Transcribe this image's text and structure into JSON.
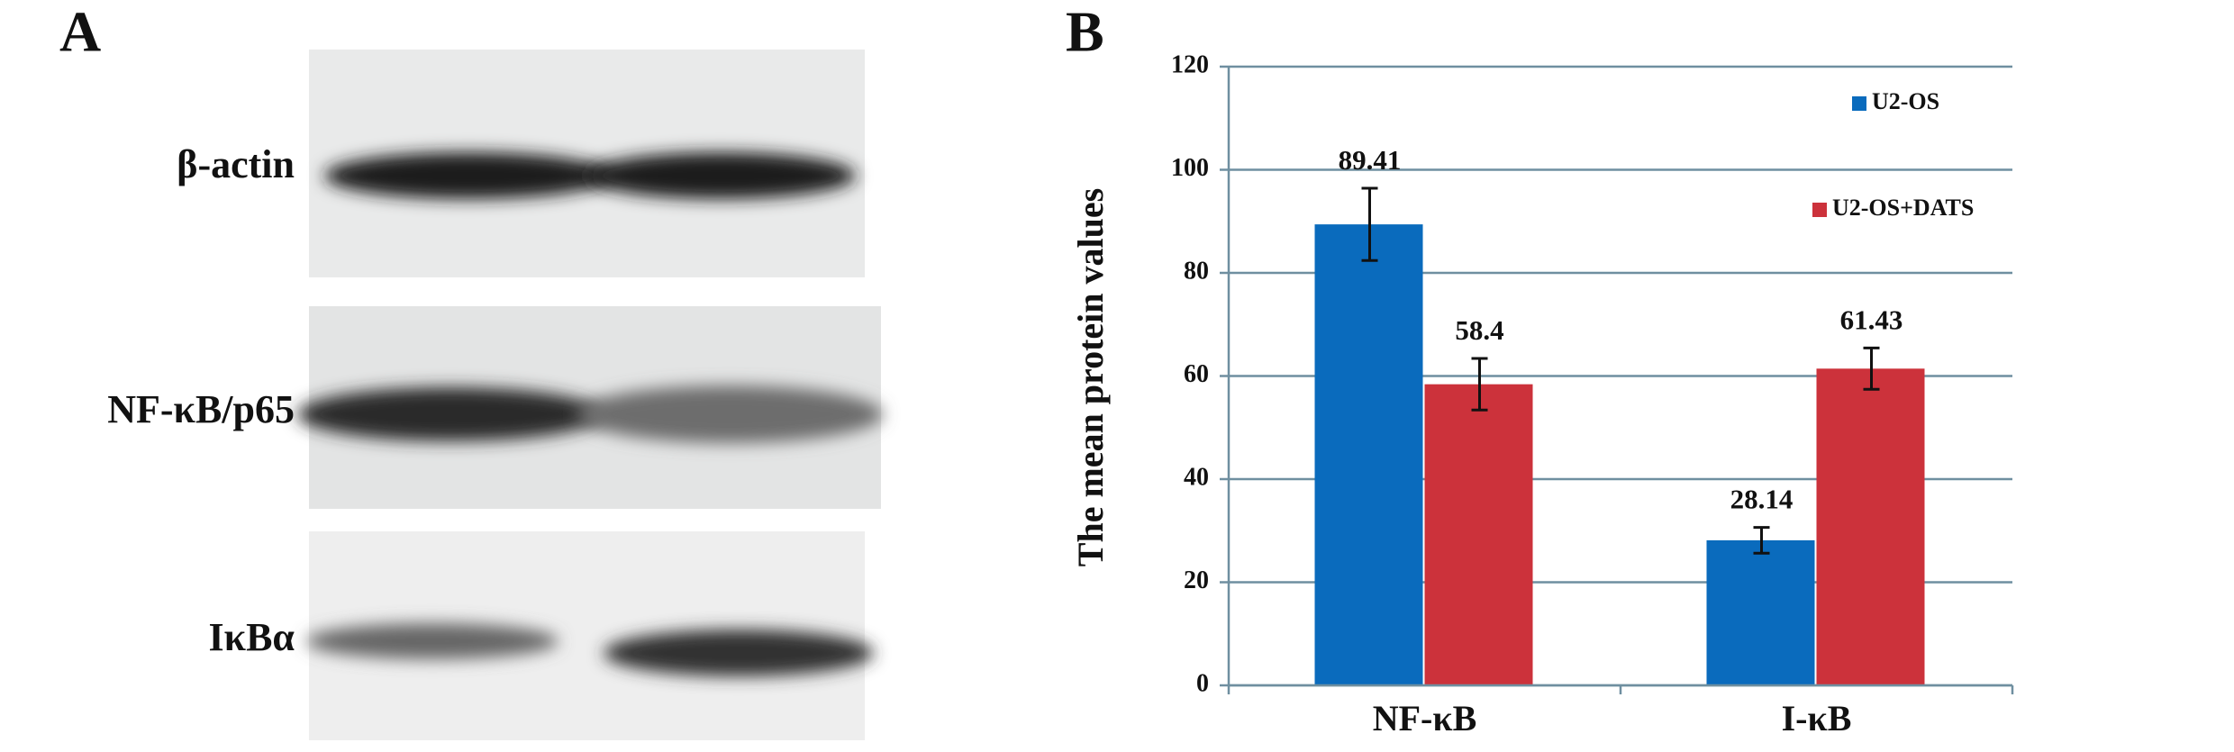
{
  "panels": {
    "left": "A",
    "right": "B"
  },
  "blot": {
    "rows": [
      "β-actin",
      "NF-κB/p65",
      "IκBα"
    ]
  },
  "chart_data": {
    "type": "bar",
    "ylabel": "The mean protein values",
    "categories": [
      "NF-κB",
      "I-κB"
    ],
    "series": [
      {
        "name": "U2-OS",
        "color": "#0a6bbd",
        "values": [
          89.41,
          28.14
        ],
        "errors": [
          7,
          2.5
        ]
      },
      {
        "name": "U2-OS+DATS",
        "color": "#cc323b",
        "values": [
          58.4,
          61.43
        ],
        "errors": [
          5,
          4
        ]
      }
    ],
    "ylim": [
      0,
      120
    ],
    "yticks": [
      0,
      20,
      40,
      60,
      80,
      100,
      120
    ],
    "grid": true,
    "legend": "upper right"
  }
}
